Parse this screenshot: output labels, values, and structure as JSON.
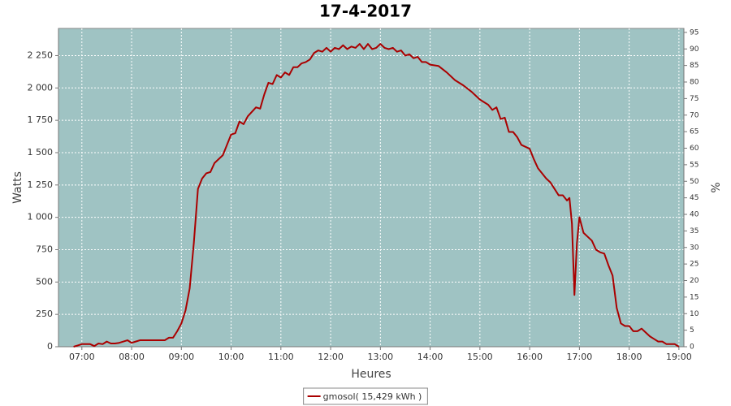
{
  "chart_data": {
    "type": "line",
    "title": "17-4-2017",
    "x_label": "Heures",
    "y_label": "Watts",
    "y2_label": "%",
    "xlim": [
      6.53,
      19.1
    ],
    "xticks": [
      {
        "value": 7,
        "label": "07:00"
      },
      {
        "value": 8,
        "label": "08:00"
      },
      {
        "value": 9,
        "label": "09:00"
      },
      {
        "value": 10,
        "label": "10:00"
      },
      {
        "value": 11,
        "label": "11:00"
      },
      {
        "value": 12,
        "label": "12:00"
      },
      {
        "value": 13,
        "label": "13:00"
      },
      {
        "value": 14,
        "label": "14:00"
      },
      {
        "value": 15,
        "label": "15:00"
      },
      {
        "value": 16,
        "label": "16:00"
      },
      {
        "value": 17,
        "label": "17:00"
      },
      {
        "value": 18,
        "label": "18:00"
      },
      {
        "value": 19,
        "label": "19:00"
      }
    ],
    "ylim": [
      0,
      2460
    ],
    "yticks": [
      0,
      250,
      500,
      750,
      {
        "value": 1000,
        "label": "1 000"
      },
      {
        "value": 1250,
        "label": "1 250"
      },
      {
        "value": 1500,
        "label": "1 500"
      },
      {
        "value": 1750,
        "label": "1 750"
      },
      {
        "value": 2000,
        "label": "2 000"
      },
      {
        "value": 2250,
        "label": "2 250"
      }
    ],
    "y2lim": [
      0,
      96.2
    ],
    "y2ticks": [
      0,
      5,
      10,
      15,
      20,
      25,
      30,
      35,
      40,
      45,
      50,
      55,
      60,
      65,
      70,
      75,
      80,
      85,
      90,
      95
    ],
    "grid": true,
    "background": "#9fc3c3",
    "legend": "bottom",
    "x": [
      6.8333,
      6.9167,
      7.0,
      7.1667,
      7.25,
      7.3333,
      7.4167,
      7.5,
      7.5833,
      7.6667,
      7.75,
      7.9167,
      8.0,
      8.0833,
      8.1667,
      8.3333,
      8.5,
      8.6667,
      8.75,
      8.8333,
      8.9167,
      9.0,
      9.0833,
      9.1667,
      9.25,
      9.3333,
      9.4167,
      9.5,
      9.5833,
      9.6667,
      9.8333,
      10.0,
      10.0833,
      10.1667,
      10.25,
      10.3333,
      10.5,
      10.5833,
      10.6667,
      10.75,
      10.8333,
      10.9167,
      11.0,
      11.0833,
      11.1667,
      11.25,
      11.3333,
      11.4167,
      11.5,
      11.5833,
      11.6667,
      11.75,
      11.8333,
      11.9167,
      12.0,
      12.0833,
      12.1667,
      12.25,
      12.3333,
      12.4167,
      12.5,
      12.5833,
      12.6667,
      12.75,
      12.8333,
      12.9167,
      13.0,
      13.0833,
      13.1667,
      13.25,
      13.3333,
      13.4167,
      13.5,
      13.5833,
      13.6667,
      13.75,
      13.8333,
      13.9167,
      14.0,
      14.1667,
      14.3333,
      14.5,
      14.6667,
      14.8333,
      15.0,
      15.1667,
      15.25,
      15.3333,
      15.4167,
      15.5,
      15.5833,
      15.6667,
      15.75,
      15.8333,
      16.0,
      16.0833,
      16.1667,
      16.3333,
      16.4167,
      16.5,
      16.5833,
      16.6667,
      16.75,
      16.8,
      16.85,
      16.9,
      16.95,
      17.0,
      17.0833,
      17.1667,
      17.25,
      17.3333,
      17.4167,
      17.5,
      17.5833,
      17.6667,
      17.75,
      17.8333,
      17.9167,
      18.0,
      18.0833,
      18.1667,
      18.25,
      18.3333,
      18.4167,
      18.5,
      18.5833,
      18.6667,
      18.75,
      18.8333,
      18.9167,
      19.0
    ],
    "series": [
      {
        "name": "gmosol( 15,429 kWh )",
        "color": "#aa0000",
        "values": [
          0,
          10,
          20,
          20,
          5,
          25,
          20,
          40,
          25,
          25,
          30,
          50,
          30,
          40,
          50,
          50,
          50,
          50,
          70,
          70,
          120,
          180,
          280,
          450,
          800,
          1220,
          1300,
          1340,
          1350,
          1420,
          1480,
          1640,
          1650,
          1740,
          1720,
          1780,
          1850,
          1840,
          1950,
          2040,
          2030,
          2100,
          2080,
          2120,
          2100,
          2160,
          2160,
          2190,
          2200,
          2220,
          2270,
          2290,
          2280,
          2310,
          2280,
          2310,
          2300,
          2330,
          2300,
          2320,
          2310,
          2340,
          2300,
          2340,
          2300,
          2310,
          2340,
          2310,
          2300,
          2310,
          2280,
          2290,
          2250,
          2260,
          2230,
          2240,
          2200,
          2200,
          2180,
          2170,
          2120,
          2060,
          2020,
          1970,
          1910,
          1870,
          1830,
          1850,
          1760,
          1770,
          1660,
          1660,
          1620,
          1560,
          1530,
          1450,
          1380,
          1300,
          1270,
          1220,
          1170,
          1170,
          1130,
          1150,
          950,
          400,
          800,
          1000,
          880,
          850,
          820,
          750,
          730,
          720,
          630,
          550,
          300,
          180,
          160,
          160,
          120,
          120,
          140,
          110,
          80,
          60,
          40,
          40,
          20,
          20,
          20,
          0
        ]
      }
    ]
  }
}
